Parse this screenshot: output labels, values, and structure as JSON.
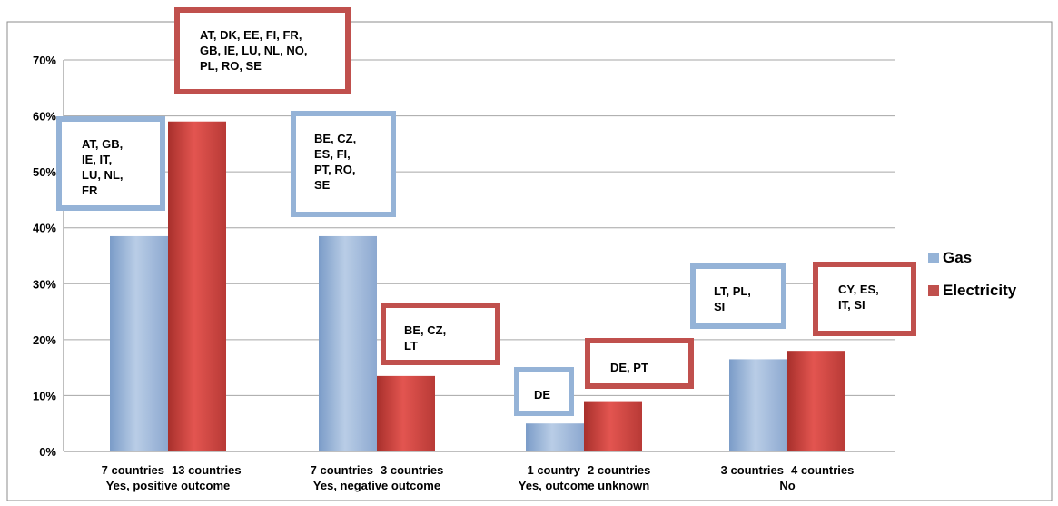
{
  "chart_data": {
    "type": "bar",
    "title": "",
    "xlabel": "",
    "ylabel": "",
    "ylim": [
      0,
      70
    ],
    "y_ticks": [
      "0%",
      "10%",
      "20%",
      "30%",
      "40%",
      "50%",
      "60%",
      "70%"
    ],
    "grid": true,
    "legend_position": "right",
    "categories": [
      "Yes, positive outcome",
      "Yes, negative outcome",
      "Yes, outcome unknown",
      "No"
    ],
    "series": [
      {
        "name": "Gas",
        "color": "#95b3d7",
        "values": [
          38.5,
          38.5,
          5,
          16.5
        ],
        "count_labels": [
          "7 countries",
          "7 countries",
          "1 country",
          "3 countries"
        ],
        "annotations": [
          "AT, GB,\nIE, IT,\nLU, NL,\nFR",
          "BE, CZ,\nES,  FI,\nPT, RO,\nSE",
          "DE",
          "LT, PL,\nSI"
        ]
      },
      {
        "name": "Electricity",
        "color": "#c0504d",
        "values": [
          59,
          13.5,
          9,
          18
        ],
        "count_labels": [
          "13 countries",
          "3 countries",
          "2 countries",
          "4 countries"
        ],
        "annotations": [
          "AT, DK, EE, FI, FR,\nGB, IE, LU, NL, NO,\nPL, RO, SE",
          "BE, CZ,\nLT",
          "DE, PT",
          "CY, ES,\nIT, SI"
        ]
      }
    ]
  }
}
